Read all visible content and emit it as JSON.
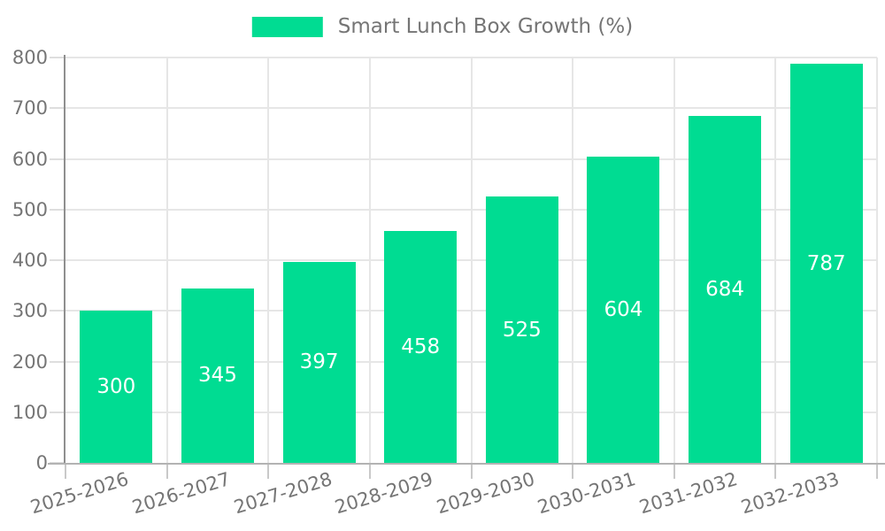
{
  "legend": {
    "label": "Smart Lunch Box Growth (%)",
    "swatch_color": "#00dc92"
  },
  "chart_data": {
    "type": "bar",
    "title": "Smart Lunch Box Growth (%)",
    "categories": [
      "2025-2026",
      "2026-2027",
      "2027-2028",
      "2028-2029",
      "2029-2030",
      "2030-2031",
      "2031-2032",
      "2032-2033"
    ],
    "series": [
      {
        "name": "Smart Lunch Box Growth (%)",
        "values": [
          300,
          345,
          397,
          458,
          525,
          604,
          684,
          787
        ]
      }
    ],
    "values": [
      300,
      345,
      397,
      458,
      525,
      604,
      684,
      787
    ],
    "value_labels": [
      "300",
      "345",
      "397",
      "458",
      "525",
      "604",
      "684",
      "787"
    ],
    "xlabel": "",
    "ylabel": "",
    "ylim": [
      0,
      800
    ],
    "yticks": [
      0,
      100,
      200,
      300,
      400,
      500,
      600,
      700,
      800
    ],
    "grid": true,
    "legend_position": "top-center",
    "x_tick_rotation_deg": -17,
    "bar_color": "#00dc92",
    "value_label_color": "#ffffff",
    "axis_text_color": "#757575",
    "gridline_color": "#e6e6e6"
  }
}
